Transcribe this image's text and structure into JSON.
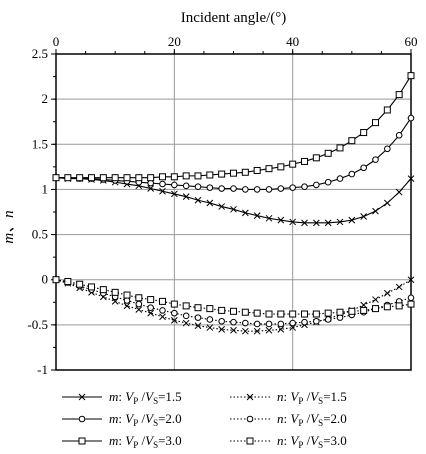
{
  "chart_data": {
    "type": "line",
    "title": "",
    "xlabel": "Incident angle/(°)",
    "ylabel": "m、n",
    "xlim": [
      0,
      60
    ],
    "ylim": [
      -1,
      2.5
    ],
    "x_ticks": [
      "0",
      "20",
      "40",
      "60"
    ],
    "y_ticks": [
      "2.5",
      "2",
      "1.5",
      "1",
      "0.5",
      "0",
      "-0.5",
      "-1"
    ],
    "x_axis_position": "top",
    "grid": true,
    "legend_position": "bottom",
    "x": [
      0,
      2,
      4,
      6,
      8,
      10,
      12,
      14,
      16,
      18,
      20,
      22,
      24,
      26,
      28,
      30,
      32,
      34,
      36,
      38,
      40,
      42,
      44,
      46,
      48,
      50,
      52,
      54,
      56,
      58,
      60
    ],
    "series": [
      {
        "prefix": "m",
        "ratio": "1.5",
        "line_style": "solid",
        "marker": "x",
        "values": [
          1.13,
          1.12,
          1.12,
          1.11,
          1.1,
          1.08,
          1.06,
          1.04,
          1.01,
          0.98,
          0.95,
          0.92,
          0.88,
          0.85,
          0.81,
          0.78,
          0.74,
          0.71,
          0.68,
          0.66,
          0.64,
          0.63,
          0.63,
          0.63,
          0.64,
          0.66,
          0.7,
          0.76,
          0.85,
          0.97,
          1.12
        ]
      },
      {
        "prefix": "m",
        "ratio": "2.0",
        "line_style": "solid",
        "marker": "circle",
        "values": [
          1.13,
          1.13,
          1.12,
          1.12,
          1.11,
          1.1,
          1.09,
          1.08,
          1.07,
          1.06,
          1.05,
          1.04,
          1.03,
          1.02,
          1.01,
          1.01,
          1.0,
          1.0,
          1.0,
          1.01,
          1.02,
          1.03,
          1.05,
          1.08,
          1.12,
          1.17,
          1.24,
          1.33,
          1.45,
          1.6,
          1.79
        ]
      },
      {
        "prefix": "m",
        "ratio": "3.0",
        "line_style": "solid",
        "marker": "square",
        "values": [
          1.13,
          1.13,
          1.13,
          1.13,
          1.13,
          1.13,
          1.13,
          1.13,
          1.13,
          1.14,
          1.14,
          1.15,
          1.15,
          1.16,
          1.17,
          1.18,
          1.19,
          1.21,
          1.23,
          1.25,
          1.28,
          1.31,
          1.35,
          1.4,
          1.46,
          1.54,
          1.63,
          1.74,
          1.88,
          2.05,
          2.26
        ]
      },
      {
        "prefix": "n",
        "ratio": "1.5",
        "line_style": "dotted",
        "marker": "x",
        "values": [
          0.0,
          -0.04,
          -0.09,
          -0.14,
          -0.19,
          -0.24,
          -0.29,
          -0.33,
          -0.37,
          -0.41,
          -0.45,
          -0.48,
          -0.51,
          -0.53,
          -0.55,
          -0.56,
          -0.57,
          -0.57,
          -0.56,
          -0.55,
          -0.53,
          -0.5,
          -0.47,
          -0.43,
          -0.39,
          -0.34,
          -0.28,
          -0.22,
          -0.15,
          -0.08,
          0.0
        ]
      },
      {
        "prefix": "n",
        "ratio": "2.0",
        "line_style": "dotted",
        "marker": "circle",
        "values": [
          0.0,
          -0.03,
          -0.07,
          -0.11,
          -0.15,
          -0.19,
          -0.23,
          -0.27,
          -0.31,
          -0.34,
          -0.37,
          -0.4,
          -0.42,
          -0.44,
          -0.46,
          -0.47,
          -0.48,
          -0.49,
          -0.49,
          -0.49,
          -0.48,
          -0.47,
          -0.46,
          -0.44,
          -0.42,
          -0.39,
          -0.36,
          -0.32,
          -0.28,
          -0.24,
          -0.2
        ]
      },
      {
        "prefix": "n",
        "ratio": "3.0",
        "line_style": "dotted",
        "marker": "square",
        "values": [
          0.0,
          -0.02,
          -0.05,
          -0.08,
          -0.11,
          -0.14,
          -0.17,
          -0.2,
          -0.22,
          -0.24,
          -0.27,
          -0.29,
          -0.31,
          -0.32,
          -0.34,
          -0.35,
          -0.36,
          -0.37,
          -0.38,
          -0.38,
          -0.38,
          -0.38,
          -0.38,
          -0.37,
          -0.36,
          -0.35,
          -0.34,
          -0.32,
          -0.3,
          -0.29,
          -0.27
        ]
      }
    ]
  },
  "legend": {
    "vp": "V",
    "vp_sub": "P",
    "vs": "V",
    "vs_sub": "S",
    "colon": ":",
    "slash": "/",
    "equals": "="
  },
  "colors": {
    "line": "#000000",
    "grid": "#999999",
    "frame": "#000000"
  }
}
